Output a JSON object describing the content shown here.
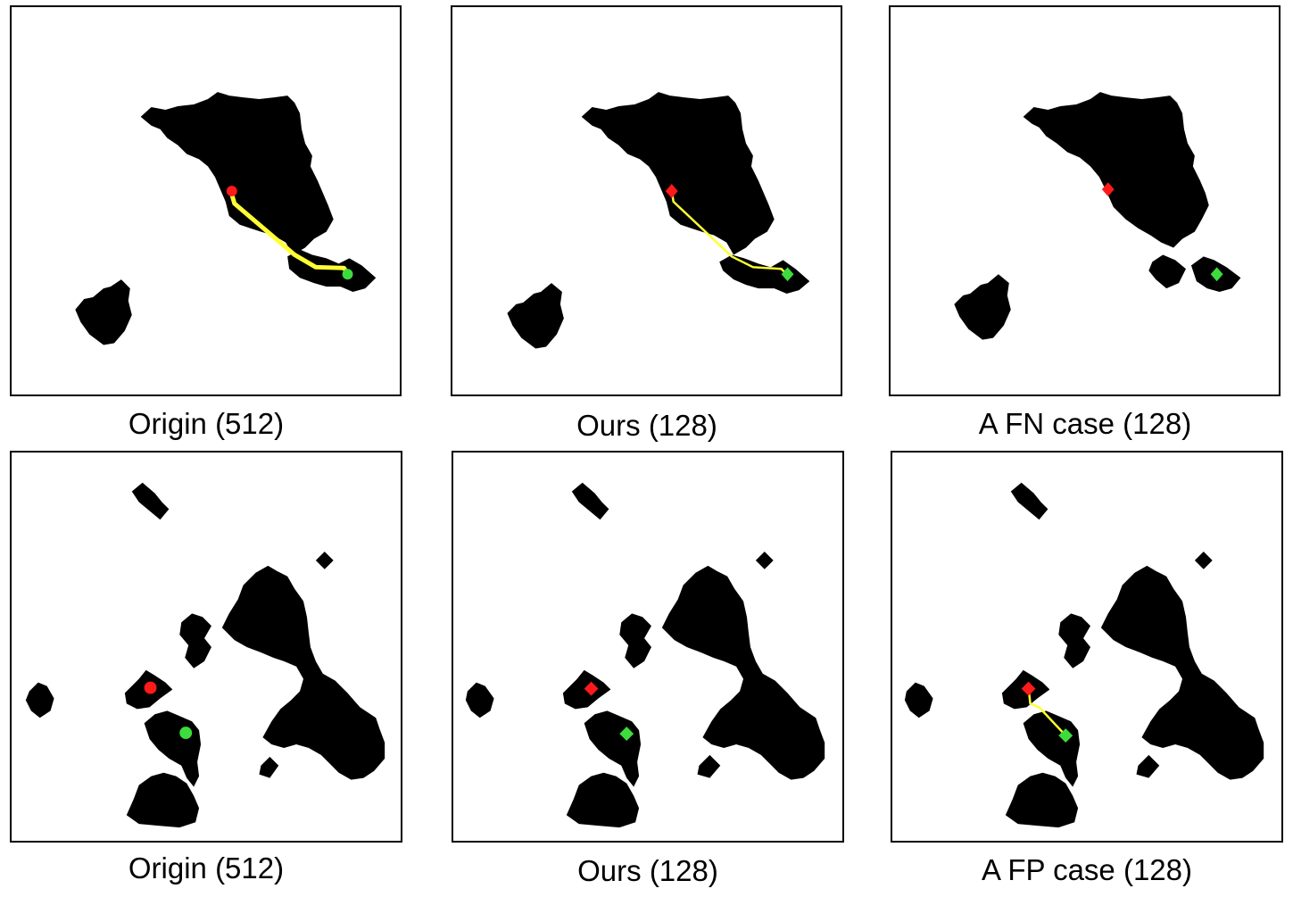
{
  "panels": [
    {
      "caption": "Origin (512)"
    },
    {
      "caption": "Ours (128)"
    },
    {
      "caption": "A FN case (128)"
    },
    {
      "caption": "Origin (512)"
    },
    {
      "caption": "Ours (128)"
    },
    {
      "caption": "A FP case (128)"
    }
  ],
  "colors": {
    "obstacle": "#000000",
    "start": "#ff1a1a",
    "goal": "#3ddc3d",
    "path": "#ffff33"
  }
}
